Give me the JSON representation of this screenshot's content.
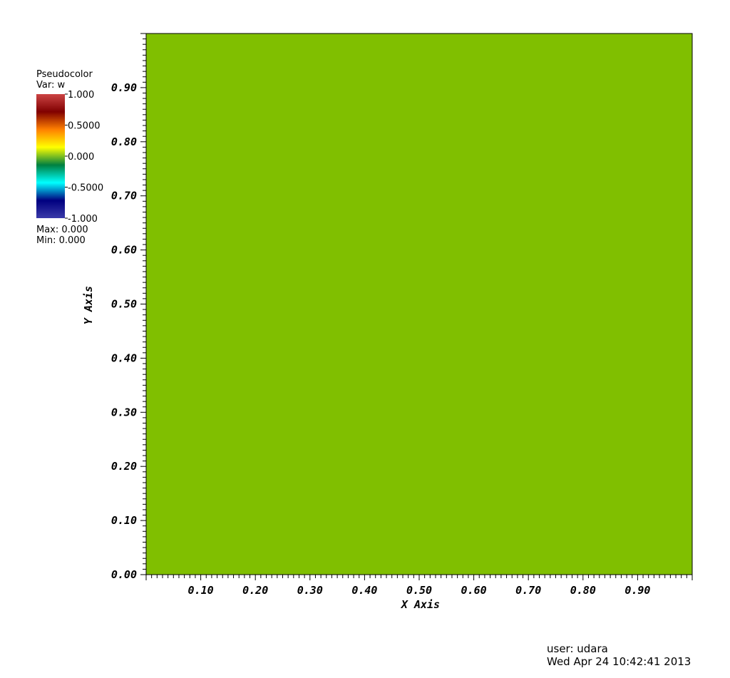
{
  "legend": {
    "plot_type": "Pseudocolor",
    "var_label": "Var: w",
    "ticks": [
      "1.000",
      "0.5000",
      "0.000",
      "-0.5000",
      "-1.000"
    ],
    "max_label": "Max:  0.000",
    "min_label": "Min:  0.000",
    "colormap": [
      "#3a3aa8",
      "#000080",
      "#00ffff",
      "#008040",
      "#ffff00",
      "#ff8000",
      "#800000",
      "#cc4444"
    ]
  },
  "chart_data": {
    "type": "heatmap",
    "title": "",
    "xlabel": "X Axis",
    "ylabel": "Y Axis",
    "xlim": [
      0,
      1
    ],
    "ylim": [
      0,
      1
    ],
    "x_ticks": [
      "0.10",
      "0.20",
      "0.30",
      "0.40",
      "0.50",
      "0.60",
      "0.70",
      "0.80",
      "0.90"
    ],
    "y_ticks": [
      "0.00",
      "0.10",
      "0.20",
      "0.30",
      "0.40",
      "0.50",
      "0.60",
      "0.70",
      "0.80",
      "0.90"
    ],
    "value_range": [
      -1,
      1
    ],
    "field_value": 0.0,
    "field_color": "#80bf00"
  },
  "footer": {
    "user": "user: udara",
    "timestamp": "Wed Apr 24 10:42:41 2013"
  }
}
